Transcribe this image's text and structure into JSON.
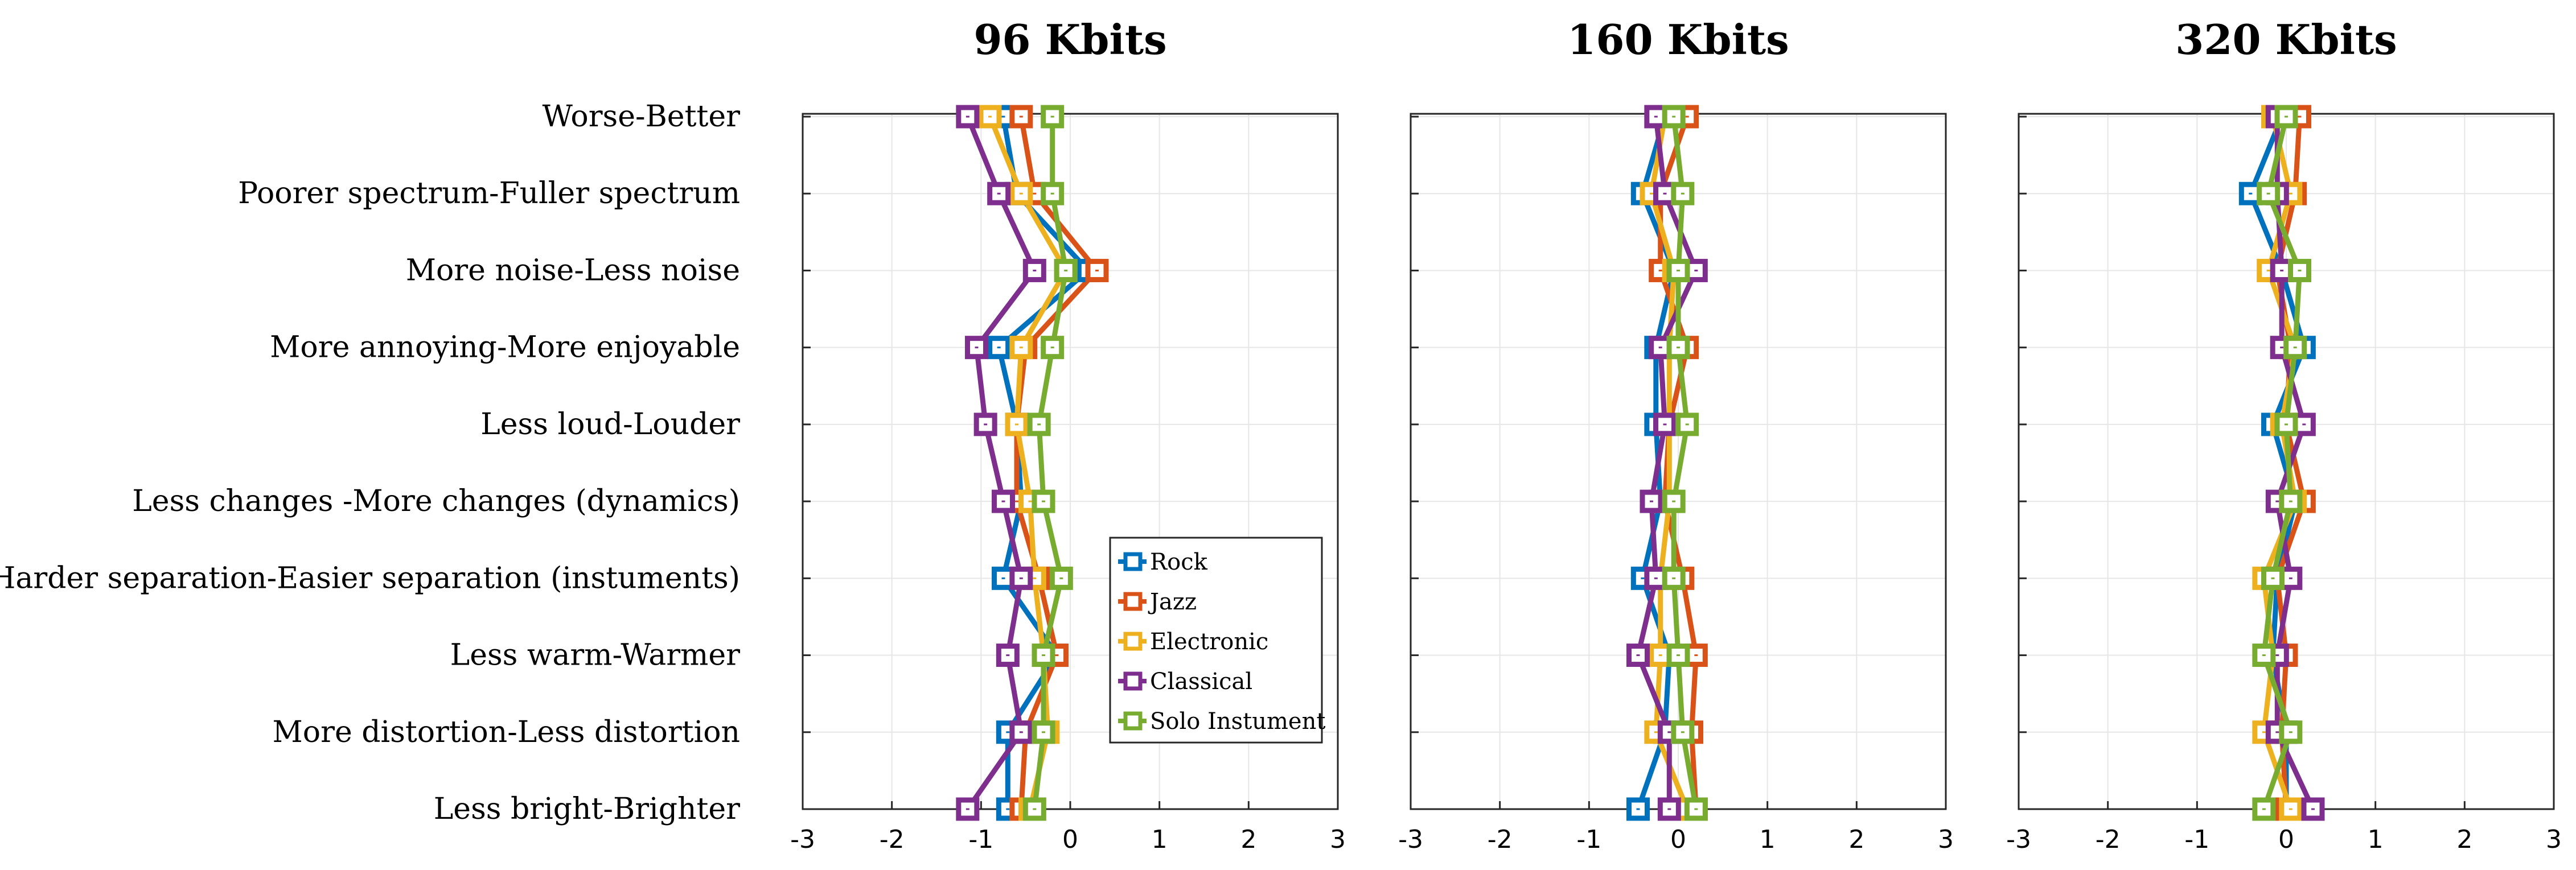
{
  "chart_data": {
    "type": "line",
    "orientation": "horizontal-values",
    "attributes": [
      "Worse-Better",
      "Poorer spectrum-Fuller spectrum",
      "More noise-Less noise",
      "More annoying-More enjoyable",
      "Less loud-Louder",
      "Less changes -More changes (dynamics)",
      "Harder separation-Easier separation (instuments)",
      "Less warm-Warmer",
      "More distortion-Less distortion",
      "Less bright-Brighter"
    ],
    "xlim": [
      -3,
      3
    ],
    "xticks": [
      "-3",
      "-2",
      "-1",
      "0",
      "1",
      "2",
      "3"
    ],
    "grid": true,
    "legend": {
      "location": "inside first panel, lower-right",
      "entries": [
        "Rock",
        "Jazz",
        "Electronic",
        "Classical",
        "Solo Instument"
      ]
    },
    "colors": {
      "Rock": "#0072BD",
      "Jazz": "#D95319",
      "Electronic": "#EDB120",
      "Classical": "#7E2F8E",
      "Solo Instument": "#77AC30"
    },
    "panels": [
      {
        "title": "96 Kbits",
        "series": [
          {
            "name": "Rock",
            "values": [
              -0.75,
              -0.6,
              0.2,
              -0.8,
              -0.6,
              -0.55,
              -0.75,
              -0.15,
              -0.7,
              -0.7
            ]
          },
          {
            "name": "Jazz",
            "values": [
              -0.55,
              -0.4,
              0.3,
              -0.5,
              -0.6,
              -0.6,
              -0.35,
              -0.15,
              -0.5,
              -0.55
            ]
          },
          {
            "name": "Electronic",
            "values": [
              -0.9,
              -0.55,
              -0.05,
              -0.55,
              -0.6,
              -0.45,
              -0.4,
              -0.3,
              -0.25,
              -0.45
            ]
          },
          {
            "name": "Classical",
            "values": [
              -1.15,
              -0.8,
              -0.4,
              -1.05,
              -0.95,
              -0.75,
              -0.55,
              -0.7,
              -0.55,
              -1.15
            ]
          },
          {
            "name": "Solo Instument",
            "values": [
              -0.2,
              -0.2,
              -0.05,
              -0.2,
              -0.35,
              -0.3,
              -0.1,
              -0.3,
              -0.3,
              -0.4
            ]
          }
        ]
      },
      {
        "title": "160 Kbits",
        "series": [
          {
            "name": "Rock",
            "values": [
              -0.15,
              -0.4,
              -0.05,
              -0.25,
              -0.25,
              -0.2,
              -0.4,
              -0.1,
              -0.15,
              -0.45
            ]
          },
          {
            "name": "Jazz",
            "values": [
              0.1,
              -0.2,
              -0.2,
              0.1,
              -0.1,
              -0.15,
              0.05,
              0.2,
              0.15,
              0.2
            ]
          },
          {
            "name": "Electronic",
            "values": [
              -0.15,
              -0.3,
              -0.05,
              -0.1,
              -0.1,
              -0.1,
              -0.2,
              -0.2,
              -0.25,
              0.1
            ]
          },
          {
            "name": "Classical",
            "values": [
              -0.25,
              -0.15,
              0.2,
              -0.2,
              -0.15,
              -0.3,
              -0.25,
              -0.45,
              -0.1,
              -0.1
            ]
          },
          {
            "name": "Solo Instument",
            "values": [
              -0.05,
              0.05,
              0.0,
              0.0,
              0.1,
              -0.05,
              -0.05,
              0.0,
              0.05,
              0.2
            ]
          }
        ]
      },
      {
        "title": "320 Kbits",
        "series": [
          {
            "name": "Rock",
            "values": [
              -0.05,
              -0.4,
              -0.05,
              0.2,
              -0.15,
              0.1,
              -0.1,
              -0.15,
              0.0,
              0.0
            ]
          },
          {
            "name": "Jazz",
            "values": [
              0.15,
              0.1,
              -0.1,
              0.05,
              0.0,
              0.2,
              -0.1,
              0.0,
              -0.05,
              0.0
            ]
          },
          {
            "name": "Electronic",
            "values": [
              -0.15,
              0.05,
              -0.2,
              0.1,
              -0.05,
              0.1,
              -0.25,
              -0.15,
              -0.25,
              0.05
            ]
          },
          {
            "name": "Classical",
            "values": [
              -0.1,
              -0.1,
              -0.05,
              -0.05,
              0.2,
              -0.1,
              0.05,
              -0.1,
              -0.1,
              0.3
            ]
          },
          {
            "name": "Solo Instument",
            "values": [
              0.0,
              -0.2,
              0.15,
              0.1,
              0.0,
              0.05,
              -0.15,
              -0.25,
              0.05,
              -0.25
            ]
          }
        ]
      }
    ]
  }
}
